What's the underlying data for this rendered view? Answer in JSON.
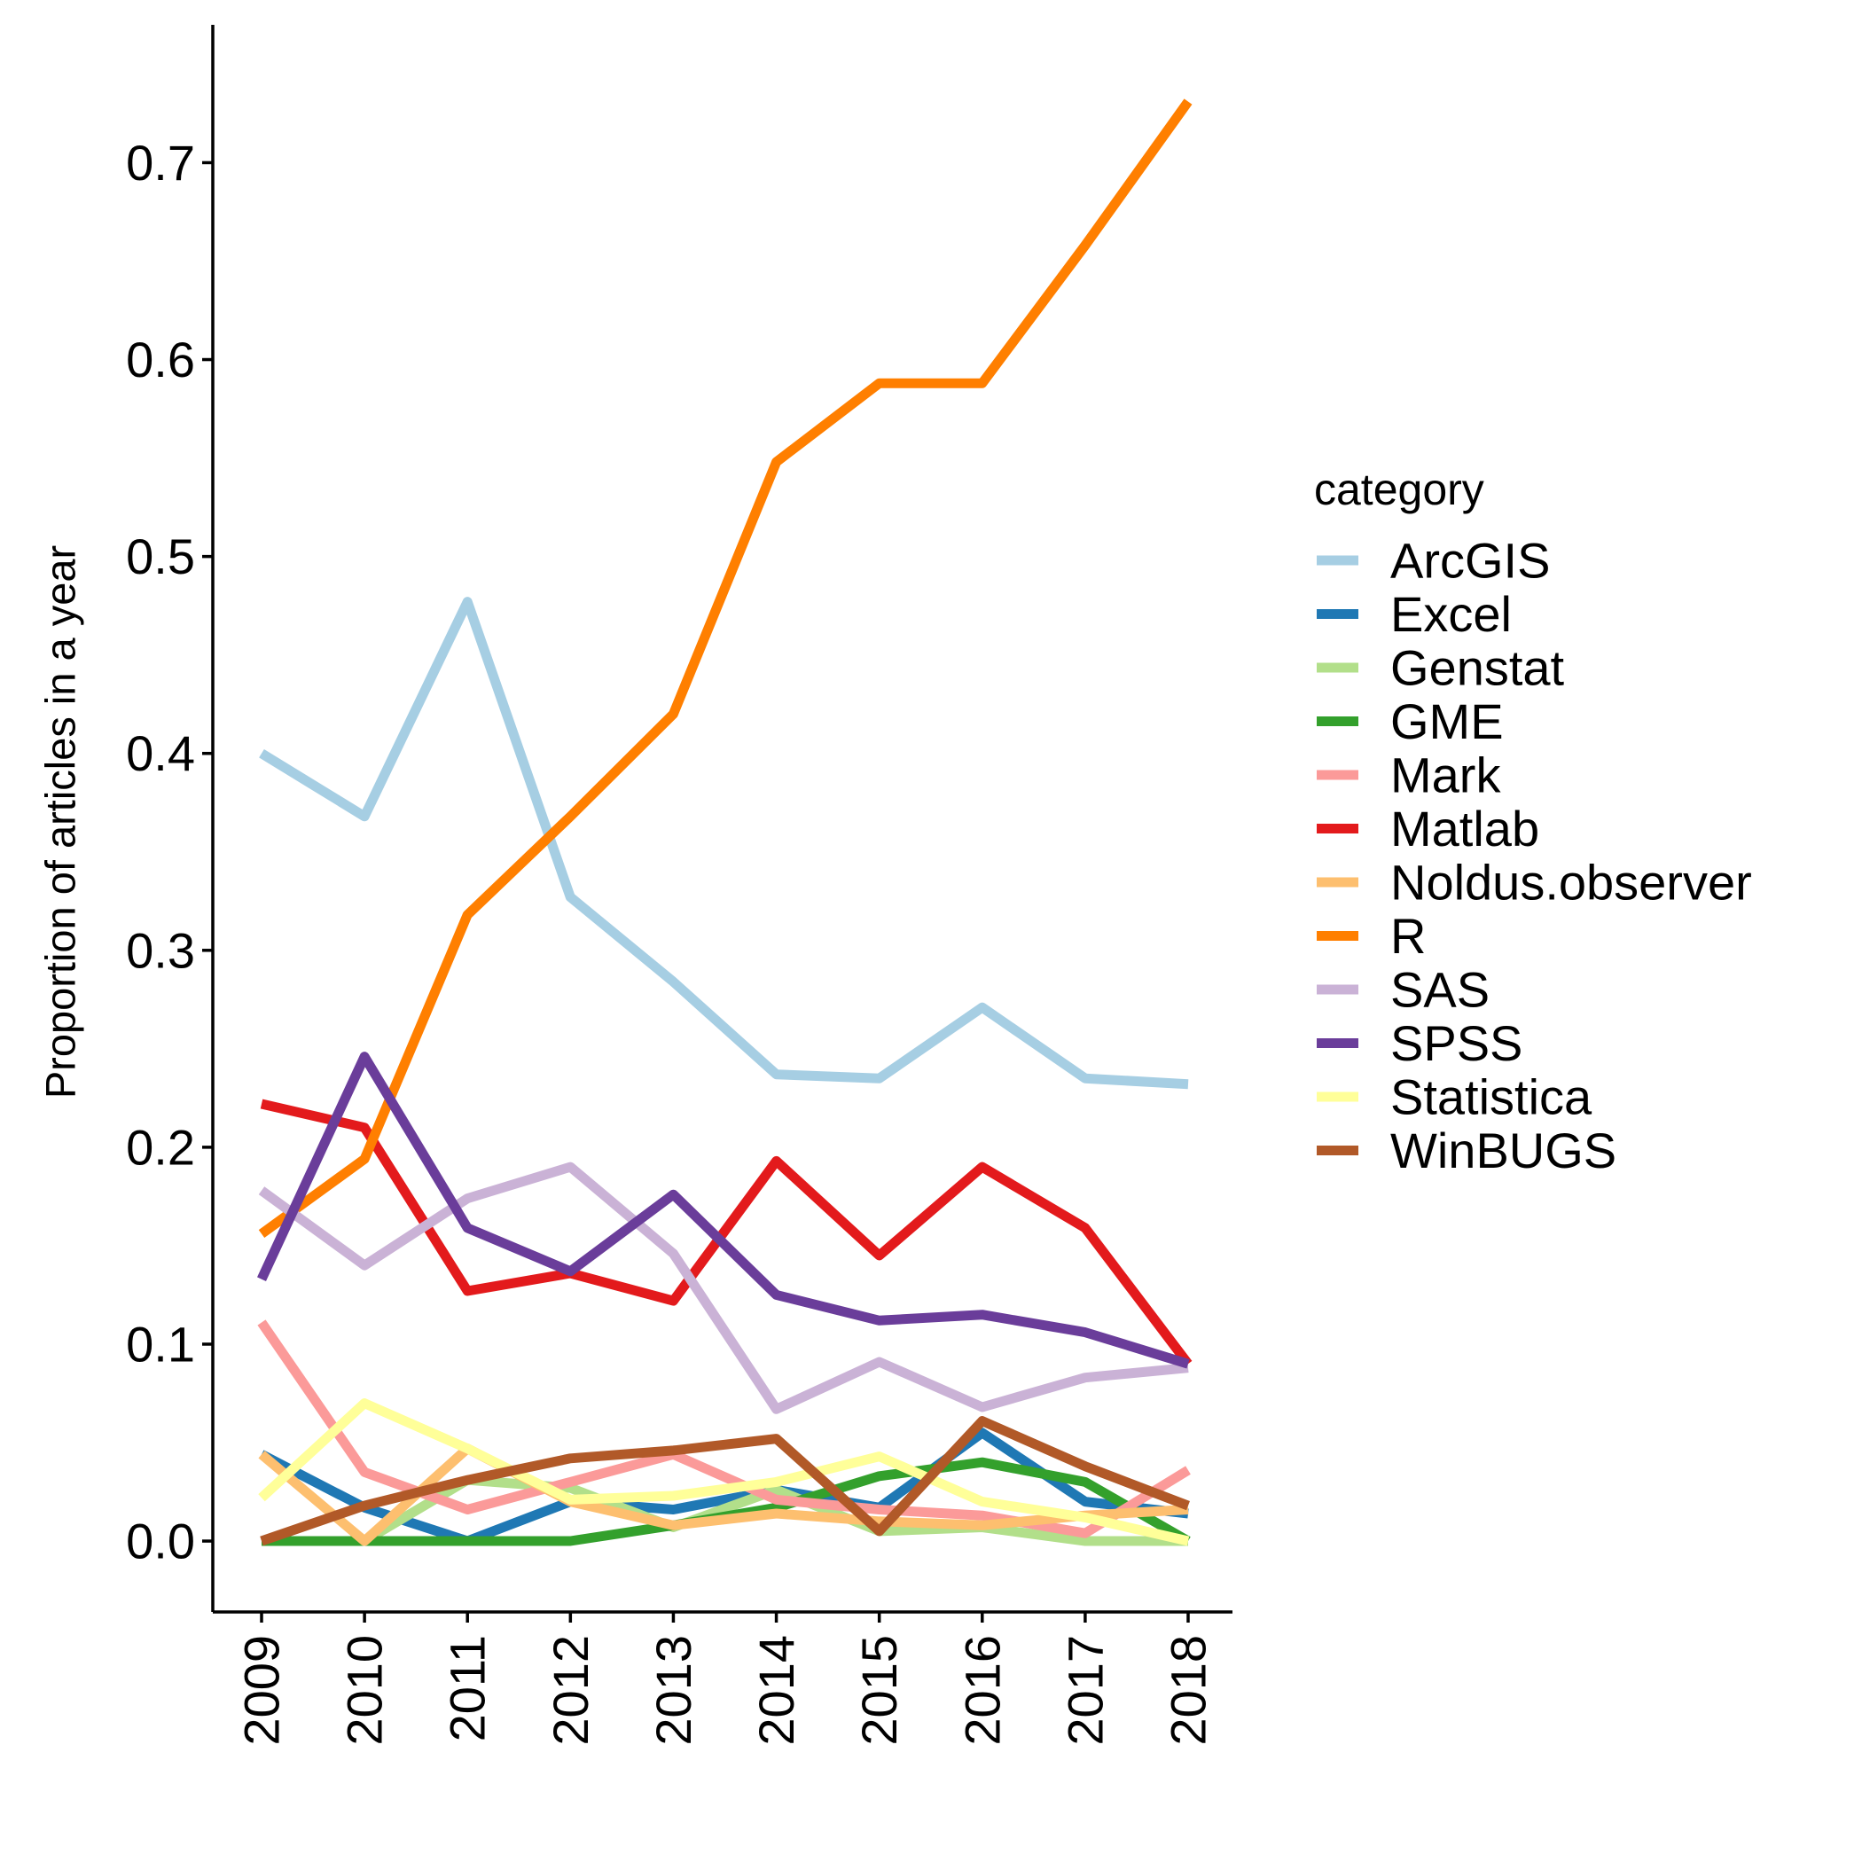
{
  "chart_data": {
    "type": "line",
    "title": "",
    "xlabel": "",
    "ylabel": "Proportion of articles in a year",
    "x": [
      "2009",
      "2010",
      "2011",
      "2012",
      "2013",
      "2014",
      "2015",
      "2016",
      "2017",
      "2018"
    ],
    "ylim": [
      -0.036,
      0.77
    ],
    "yticks": [
      0.0,
      0.1,
      0.2,
      0.3,
      0.4,
      0.5,
      0.6,
      0.7
    ],
    "ytick_labels": [
      "0.0",
      "0.1",
      "0.2",
      "0.3",
      "0.4",
      "0.5",
      "0.6",
      "0.7"
    ],
    "grid": false,
    "x_tick_rotation": "vertical",
    "legend": {
      "title": "category",
      "position": "right"
    },
    "series": [
      {
        "name": "ArcGIS",
        "color": "#A6CEE3",
        "values": [
          0.4,
          0.368,
          0.477,
          0.327,
          0.284,
          0.237,
          0.235,
          0.271,
          0.235,
          0.232
        ]
      },
      {
        "name": "Excel",
        "color": "#1F78B4",
        "values": [
          0.044,
          0.017,
          0.0,
          0.02,
          0.016,
          0.026,
          0.017,
          0.055,
          0.02,
          0.014
        ]
      },
      {
        "name": "Genstat",
        "color": "#B2DF8A",
        "values": [
          0.0,
          0.0,
          0.031,
          0.027,
          0.007,
          0.026,
          0.005,
          0.007,
          0.0,
          0.0
        ]
      },
      {
        "name": "GME",
        "color": "#33A02C",
        "values": [
          0.0,
          0.0,
          0.0,
          0.0,
          0.008,
          0.017,
          0.033,
          0.04,
          0.03,
          0.0
        ]
      },
      {
        "name": "Mark",
        "color": "#FB9A99",
        "values": [
          0.111,
          0.035,
          0.016,
          0.03,
          0.044,
          0.021,
          0.016,
          0.013,
          0.004,
          0.036
        ]
      },
      {
        "name": "Matlab",
        "color": "#E31A1C",
        "values": [
          0.222,
          0.21,
          0.127,
          0.136,
          0.122,
          0.193,
          0.145,
          0.19,
          0.159,
          0.09
        ]
      },
      {
        "name": "Noldus.observer",
        "color": "#FDBF6F",
        "values": [
          0.044,
          0.0,
          0.047,
          0.02,
          0.008,
          0.014,
          0.01,
          0.008,
          0.013,
          0.016
        ]
      },
      {
        "name": "R",
        "color": "#FF7F00",
        "values": [
          0.156,
          0.194,
          0.318,
          0.368,
          0.42,
          0.548,
          0.588,
          0.588,
          0.658,
          0.731
        ]
      },
      {
        "name": "SAS",
        "color": "#CAB2D6",
        "values": [
          0.178,
          0.14,
          0.174,
          0.19,
          0.146,
          0.067,
          0.091,
          0.068,
          0.083,
          0.088
        ]
      },
      {
        "name": "SPSS",
        "color": "#6A3D9A",
        "values": [
          0.133,
          0.246,
          0.159,
          0.137,
          0.176,
          0.125,
          0.112,
          0.115,
          0.106,
          0.09
        ]
      },
      {
        "name": "Statistica",
        "color": "#FFFF99",
        "values": [
          0.022,
          0.07,
          0.047,
          0.021,
          0.023,
          0.03,
          0.043,
          0.02,
          0.012,
          0.0
        ]
      },
      {
        "name": "WinBUGS",
        "color": "#B15928",
        "values": [
          0.0,
          0.018,
          0.031,
          0.042,
          0.046,
          0.052,
          0.005,
          0.061,
          0.038,
          0.018
        ]
      }
    ]
  }
}
